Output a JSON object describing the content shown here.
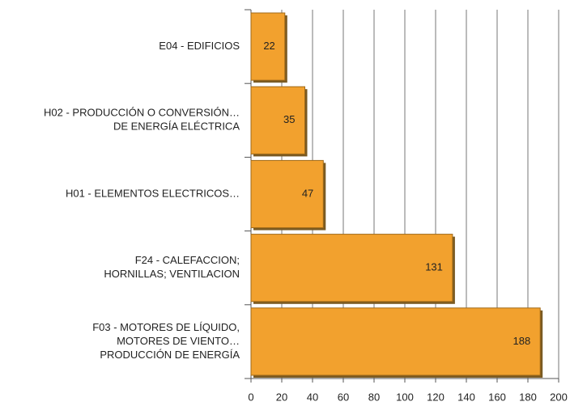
{
  "chart_data": {
    "type": "barh",
    "categories": [
      [
        "E04 - EDIFICIOS"
      ],
      [
        "H02 - PRODUCCIÓN O CONVERSIÓN…",
        "DE ENERGÍA ELÉCTRICA"
      ],
      [
        "H01 - ELEMENTOS ELECTRICOS…"
      ],
      [
        "F24 - CALEFACCION;",
        "HORNILLAS; VENTILACION"
      ],
      [
        "F03 - MOTORES DE LÍQUIDO,",
        "MOTORES DE VIENTO…",
        "PRODUCCIÓN DE ENERGÍA"
      ]
    ],
    "values": [
      22,
      35,
      47,
      131,
      188
    ],
    "color": "#f2a12e",
    "xlim": [
      0,
      200
    ],
    "xticks": [
      0,
      20,
      40,
      60,
      80,
      100,
      120,
      140,
      160,
      180,
      200
    ],
    "grid": true
  }
}
